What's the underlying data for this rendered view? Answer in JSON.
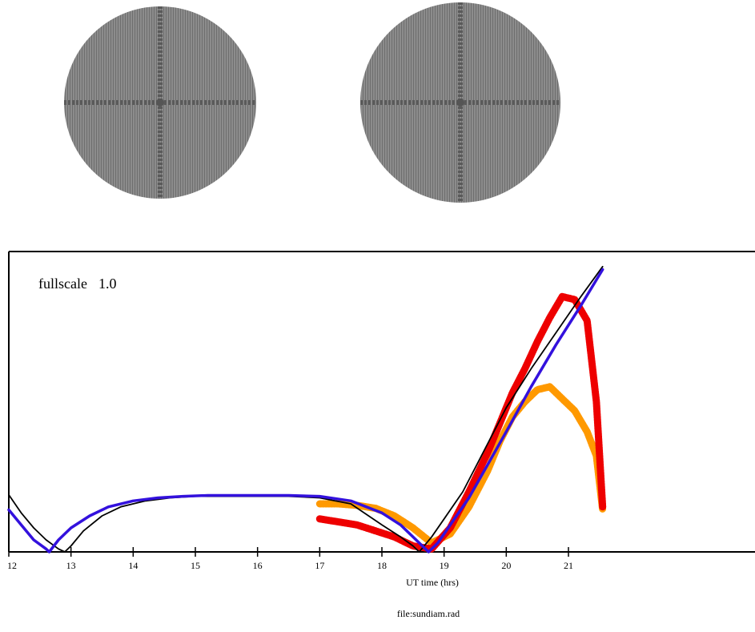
{
  "chart_data": {
    "type": "line",
    "xlabel": "UT time (hrs)",
    "xlim": [
      12,
      24
    ],
    "ylim": [
      0,
      1.0
    ],
    "x_ticks": [
      12,
      13,
      14,
      15,
      16,
      17,
      18,
      19,
      20,
      21
    ],
    "annotation_label": "fullscale",
    "annotation_value": "1.0",
    "footer": "file:sundiam.rad",
    "grid": false,
    "series": [
      {
        "color": "#000000",
        "x": [
          12.0,
          12.2,
          12.4,
          12.6,
          12.8,
          12.9,
          13.0,
          13.2,
          13.5,
          13.8,
          14.2,
          14.6,
          15.0,
          15.5,
          16.0,
          16.5,
          17.0,
          17.5,
          18.0,
          18.3,
          18.5,
          18.6,
          18.8,
          19.0,
          19.3,
          19.6,
          20.0,
          20.4,
          20.8,
          21.2,
          21.55
        ],
        "y": [
          0.19,
          0.13,
          0.08,
          0.04,
          0.01,
          0.0,
          0.02,
          0.07,
          0.12,
          0.15,
          0.17,
          0.18,
          0.185,
          0.185,
          0.185,
          0.185,
          0.18,
          0.16,
          0.09,
          0.05,
          0.02,
          0.0,
          0.05,
          0.11,
          0.2,
          0.32,
          0.48,
          0.61,
          0.73,
          0.85,
          0.95
        ]
      },
      {
        "color": "#3311dd",
        "x": [
          12.0,
          12.2,
          12.4,
          12.6,
          12.65,
          12.8,
          13.0,
          13.3,
          13.6,
          14.0,
          14.4,
          14.8,
          15.2,
          15.6,
          16.0,
          16.5,
          17.0,
          17.5,
          18.0,
          18.3,
          18.6,
          18.75,
          18.9,
          19.1,
          19.4,
          19.7,
          20.0,
          20.4,
          20.8,
          21.2,
          21.55
        ],
        "y": [
          0.14,
          0.09,
          0.04,
          0.01,
          0.0,
          0.04,
          0.08,
          0.12,
          0.15,
          0.17,
          0.18,
          0.185,
          0.188,
          0.188,
          0.188,
          0.188,
          0.185,
          0.17,
          0.13,
          0.09,
          0.03,
          0.0,
          0.03,
          0.09,
          0.18,
          0.29,
          0.4,
          0.55,
          0.69,
          0.82,
          0.94
        ]
      },
      {
        "color": "#ff9900",
        "x": [
          17.0,
          17.3,
          17.6,
          17.9,
          18.2,
          18.5,
          18.8,
          19.1,
          19.4,
          19.7,
          19.9,
          20.1,
          20.3,
          20.5,
          20.7,
          20.9,
          21.1,
          21.3,
          21.45,
          21.55
        ],
        "y": [
          0.16,
          0.16,
          0.155,
          0.145,
          0.12,
          0.08,
          0.03,
          0.06,
          0.15,
          0.27,
          0.37,
          0.45,
          0.5,
          0.54,
          0.55,
          0.51,
          0.47,
          0.4,
          0.32,
          0.14
        ]
      },
      {
        "color": "#ee0000",
        "x": [
          17.0,
          17.3,
          17.6,
          17.9,
          18.2,
          18.5,
          18.8,
          19.1,
          19.4,
          19.7,
          19.9,
          20.1,
          20.3,
          20.5,
          20.7,
          20.9,
          21.1,
          21.3,
          21.45,
          21.55
        ],
        "y": [
          0.11,
          0.1,
          0.09,
          0.07,
          0.05,
          0.02,
          0.01,
          0.08,
          0.2,
          0.33,
          0.43,
          0.53,
          0.61,
          0.7,
          0.78,
          0.85,
          0.84,
          0.77,
          0.5,
          0.15
        ]
      }
    ]
  }
}
